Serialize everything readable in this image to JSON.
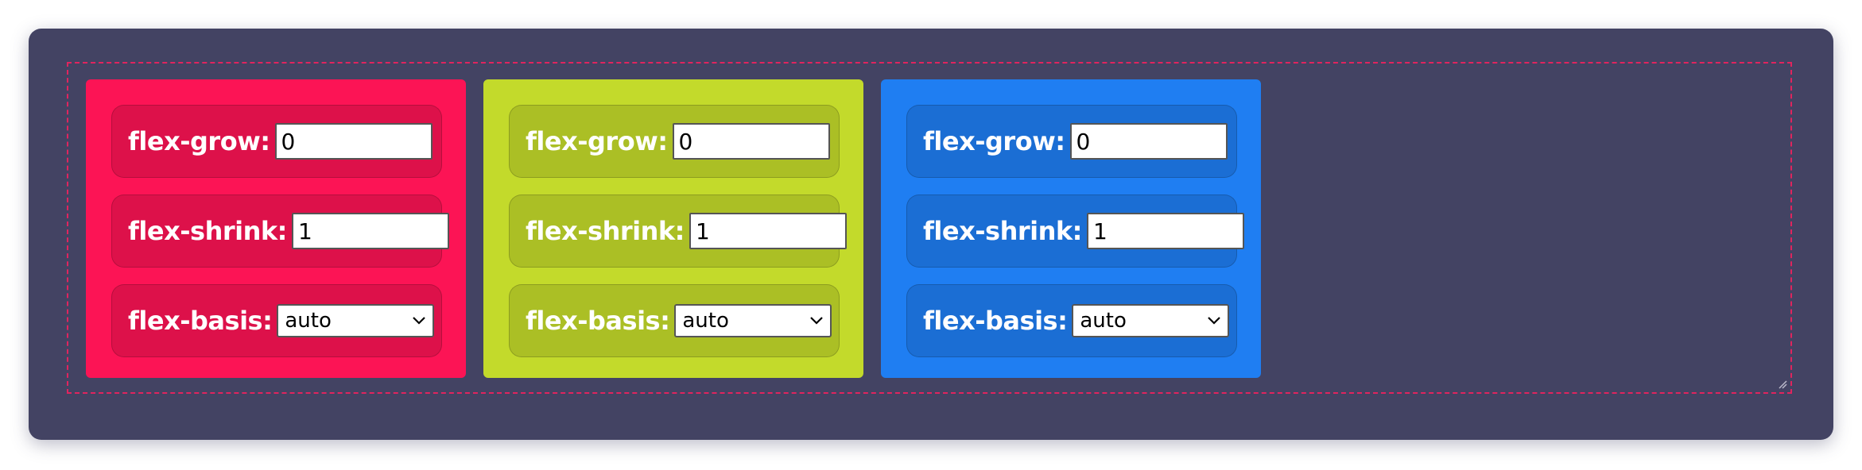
{
  "colors": {
    "panel_background": "#434363",
    "container_border": "#e0245e",
    "card_1": "#fc1455",
    "card_2": "#c3da2b",
    "card_3": "#1f7ef2"
  },
  "cards": [
    {
      "flex_grow_label": "flex-grow:",
      "flex_grow_value": "0",
      "flex_shrink_label": "flex-shrink:",
      "flex_shrink_value": "1",
      "flex_basis_label": "flex-basis:",
      "flex_basis_value": "auto"
    },
    {
      "flex_grow_label": "flex-grow:",
      "flex_grow_value": "0",
      "flex_shrink_label": "flex-shrink:",
      "flex_shrink_value": "1",
      "flex_basis_label": "flex-basis:",
      "flex_basis_value": "auto"
    },
    {
      "flex_grow_label": "flex-grow:",
      "flex_grow_value": "0",
      "flex_shrink_label": "flex-shrink:",
      "flex_shrink_value": "1",
      "flex_basis_label": "flex-basis:",
      "flex_basis_value": "auto"
    }
  ],
  "icons": {
    "select_arrow": "chevron-down-icon",
    "resize": "resize-grip-icon"
  }
}
